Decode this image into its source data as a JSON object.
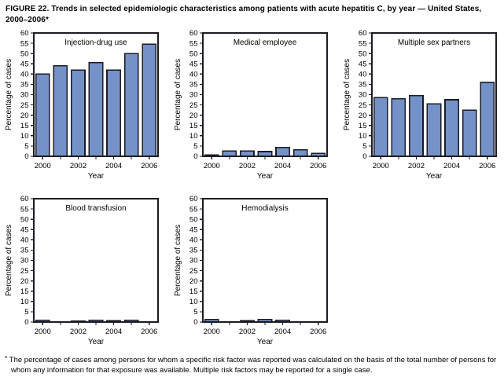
{
  "figure": {
    "title": "FIGURE 22. Trends in selected epidemiologic characteristics among patients with acute hepatitis C, by year — United States, 2000–2006*",
    "footnote_marker": "*",
    "footnote": "The percentage of cases among persons for whom a specific risk factor was reported was calculated on the basis of the total number of persons for whom any information for that exposure was available. Multiple risk factors may be reported for a single case."
  },
  "style": {
    "bar_fill": "#7592C8",
    "bar_border": "#1b1b22",
    "axis_color": "#1b1b22",
    "text_color": "#000000"
  },
  "chart_data": [
    {
      "type": "bar",
      "title": "Injection-drug use",
      "categories": [
        "2000",
        "2001",
        "2002",
        "2003",
        "2004",
        "2005",
        "2006"
      ],
      "values": [
        40,
        44,
        42,
        45.5,
        42,
        50,
        54.5
      ],
      "xlabel": "Year",
      "ylabel": "Percentage of cases",
      "ylim": [
        0,
        60
      ],
      "ytick_step": 5,
      "xtick_labels": [
        "2000",
        "2002",
        "2004",
        "2006"
      ],
      "grid": false,
      "legend": false
    },
    {
      "type": "bar",
      "title": "Medical employee",
      "categories": [
        "2000",
        "2001",
        "2002",
        "2003",
        "2004",
        "2005",
        "2006"
      ],
      "values": [
        0.7,
        2.6,
        2.6,
        2.3,
        4.3,
        3.2,
        1.5
      ],
      "xlabel": "Year",
      "ylabel": "Percentage of cases",
      "ylim": [
        0,
        60
      ],
      "ytick_step": 5,
      "xtick_labels": [
        "2000",
        "2002",
        "2004",
        "2006"
      ],
      "grid": false,
      "legend": false
    },
    {
      "type": "bar",
      "title": "Multiple sex partners",
      "categories": [
        "2000",
        "2001",
        "2002",
        "2003",
        "2004",
        "2005",
        "2006"
      ],
      "values": [
        28.5,
        28,
        29.5,
        25.5,
        27.5,
        22.5,
        36
      ],
      "xlabel": "Year",
      "ylabel": "Percentage of cases",
      "ylim": [
        0,
        60
      ],
      "ytick_step": 5,
      "xtick_labels": [
        "2000",
        "2002",
        "2004",
        "2006"
      ],
      "grid": false,
      "legend": false
    },
    {
      "type": "bar",
      "title": "Blood transfusion",
      "categories": [
        "2000",
        "2001",
        "2002",
        "2003",
        "2004",
        "2005",
        "2006"
      ],
      "values": [
        0.8,
        0,
        0.4,
        0.8,
        0.7,
        0.8,
        0
      ],
      "xlabel": "Year",
      "ylabel": "Percentage of cases",
      "ylim": [
        0,
        60
      ],
      "ytick_step": 5,
      "xtick_labels": [
        "2000",
        "2002",
        "2004",
        "2006"
      ],
      "grid": false,
      "legend": false
    },
    {
      "type": "bar",
      "title": "Hemodialysis",
      "categories": [
        "2000",
        "2001",
        "2002",
        "2003",
        "2004",
        "2005",
        "2006"
      ],
      "values": [
        1.3,
        0,
        0.6,
        1.3,
        0.8,
        0,
        0
      ],
      "xlabel": "Year",
      "ylabel": "Percentage of cases",
      "ylim": [
        0,
        60
      ],
      "ytick_step": 5,
      "xtick_labels": [
        "2000",
        "2002",
        "2004",
        "2006"
      ],
      "grid": false,
      "legend": false
    }
  ]
}
